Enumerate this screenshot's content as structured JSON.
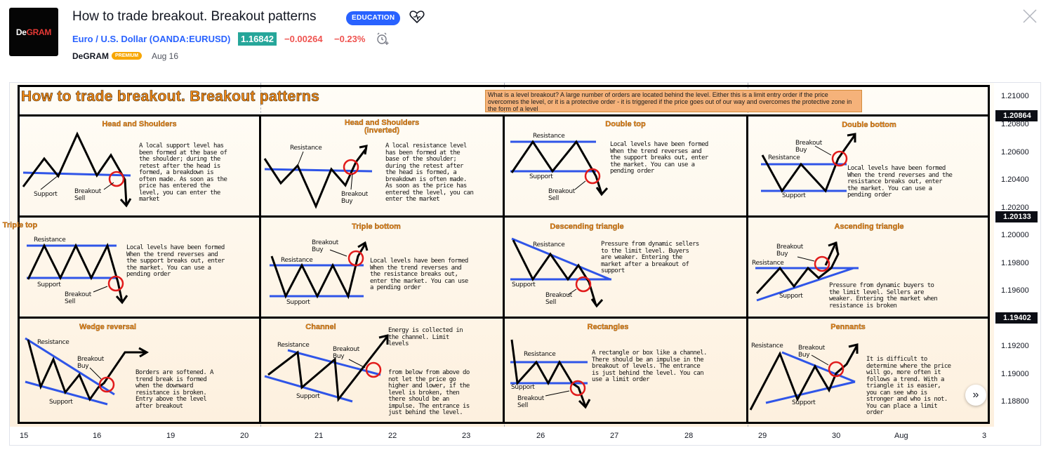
{
  "header": {
    "logo_text_1": "De",
    "logo_text_2": "GRAM",
    "title": "How to trade breakout. Breakout patterns",
    "badge": "EDUCATION",
    "symbol": "Euro / U.S. Dollar (OANDA:EURUSD)",
    "price": "1.16842",
    "change": "−0.00264",
    "change_pct": "−0.23%",
    "author": "DeGRAM",
    "author_badge": "PREMIUM",
    "date": "Aug 16"
  },
  "colors": {
    "accent": "#2962ff",
    "up": "#26a69a",
    "down": "#ef5350",
    "title_orange": "#f28a17",
    "trend_blue": "#2f55e8",
    "circle_red": "#e11b1b"
  },
  "chart": {
    "main_title": "How to trade breakout. Breakout patterns",
    "info": "What is a level breakout? A large number of orders are located behind the level. Either this is a limit entry order if the price overcomes the level, or it is a protective order - it is triggered if the price goes out of our way and overcomes the protective zone in the form of a level",
    "patterns": [
      {
        "title": "Head and Shoulders",
        "desc": "A local support level has been formed at the base of the shoulder; during the retest after the head is formed, a breakdown is often made. As soon as the price has entered the level, you can enter the market",
        "labels": [
          "Support",
          "Breakout",
          "Sell"
        ]
      },
      {
        "title": "Head and Shoulders",
        "subtitle": "(inverted)",
        "desc": "A local resistance level has been formed at the base of the shoulder; during the retest after the head is formed, a breakdown is often made. As soon as the price has entered the level, you can enter the market",
        "labels": [
          "Resistance",
          "Breakout",
          "Buy"
        ]
      },
      {
        "title": "Double top",
        "desc": "Local levels have been formed When the trend reverses and the support breaks out, enter the market. You can use a pending order",
        "labels": [
          "Resistance",
          "Support",
          "Breakout",
          "Sell"
        ]
      },
      {
        "title": "Double bottom",
        "desc": "Local levels have been formed When the trend reverses and the resistance breaks out, enter the market. You can use a pending order",
        "labels": [
          "Breakout",
          "Buy",
          "Resistance",
          "Support"
        ]
      },
      {
        "title": "Triple top",
        "desc": "Local levels have been formed When the trend reverses and the support breaks out, enter the market. You can use a pending order",
        "labels": [
          "Resistance",
          "Support",
          "Breakout",
          "Sell"
        ]
      },
      {
        "title": "Triple bottom",
        "desc": "Local levels have been formed When the trend reverses and the resistance breaks out, enter the market. You can use a pending order",
        "labels": [
          "Breakout",
          "Buy",
          "Resistance",
          "Support"
        ]
      },
      {
        "title": "Descending triangle",
        "desc": "Pressure from dynamic sellers to the limit level. Buyers are weaker. Entering the market after a breakout of support",
        "labels": [
          "Resistance",
          "Support",
          "Breakout",
          "Sell"
        ]
      },
      {
        "title": "Ascending triangle",
        "desc": "Pressure from dynamic buyers to the limit level. Sellers are weaker. Entering the market when resistance is broken",
        "labels": [
          "Breakout",
          "Buy",
          "Resistance",
          "Support"
        ]
      },
      {
        "title": "Wedge reversal",
        "desc": "Borders are softened. A trend break is formed when the downward resistance is broken. Entry above the level after breakout",
        "labels": [
          "Resistance",
          "Breakout",
          "Buy",
          "Support"
        ]
      },
      {
        "title": "Channel",
        "desc_top": "Energy is collected in the channel. Limit levels",
        "desc": "from below from above do not let the price go higher and lower, if the level is broken, then there should be an impulse. The entrance is just behind the level.",
        "labels": [
          "Resistance",
          "Breakout",
          "Buy",
          "Support"
        ]
      },
      {
        "title": "Rectangles",
        "desc": "A rectangle or box like a channel. There should be an impulse in the breakout of levels. The entrance is just behind the level. You can use a limit order",
        "labels": [
          "Resistance",
          "Support",
          "Breakout",
          "Sell"
        ]
      },
      {
        "title": "Pennants",
        "desc": "It is difficult to determine where the price will go, more often it follows a trend. With a triangle it is easier, you can see who is stronger and who is not. You can place a limit order",
        "labels": [
          "Resistance",
          "Breakout",
          "Buy",
          "Support"
        ]
      }
    ],
    "y_ticks": [
      "1.21000",
      "1.20800",
      "1.20600",
      "1.20400",
      "1.20200",
      "1.20000",
      "1.19800",
      "1.19600",
      "1.19200",
      "1.19000",
      "1.18800"
    ],
    "y_tags": [
      "1.20864",
      "1.20133",
      "1.19402"
    ],
    "x_ticks": [
      "15",
      "16",
      "19",
      "20",
      "21",
      "22",
      "23",
      "26",
      "27",
      "28",
      "29",
      "30",
      "Aug",
      "3"
    ]
  }
}
